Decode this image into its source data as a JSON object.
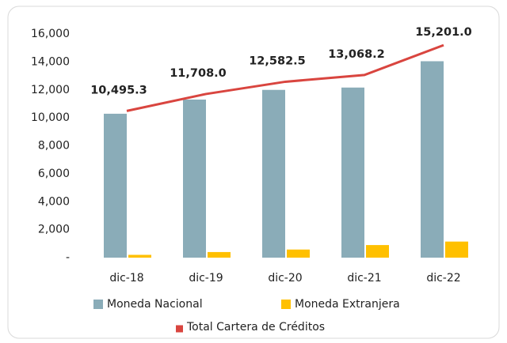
{
  "chart_data": {
    "type": "bar_line",
    "categories": [
      "dic-18",
      "dic-19",
      "dic-20",
      "dic-21",
      "dic-22"
    ],
    "series": [
      {
        "name": "Moneda Nacional",
        "color": "#8aacb8",
        "type": "bar",
        "values": [
          10295,
          11308,
          12002,
          12168,
          14051
        ]
      },
      {
        "name": "Moneda Extranjera",
        "color": "#ffc000",
        "type": "bar",
        "values": [
          200,
          400,
          580,
          900,
          1150
        ]
      },
      {
        "name": "Total Cartera de Créditos",
        "color": "#d9453f",
        "type": "line",
        "values": [
          10495.3,
          11708.0,
          12582.5,
          13068.2,
          15201.0
        ],
        "value_labels": [
          "10,495.3",
          "11,708.0",
          "12,582.5",
          "13,068.2",
          "15,201.0"
        ]
      }
    ],
    "ylim": [
      0,
      16000
    ],
    "yticks": [
      {
        "value": 0,
        "label": "-"
      },
      {
        "value": 2000,
        "label": "2,000"
      },
      {
        "value": 4000,
        "label": "4,000"
      },
      {
        "value": 6000,
        "label": "6,000"
      },
      {
        "value": 8000,
        "label": "8,000"
      },
      {
        "value": 10000,
        "label": "10,000"
      },
      {
        "value": 12000,
        "label": "12,000"
      },
      {
        "value": 14000,
        "label": "14,000"
      },
      {
        "value": 16000,
        "label": "16,000"
      }
    ],
    "grid": false,
    "legend": "bottom"
  }
}
